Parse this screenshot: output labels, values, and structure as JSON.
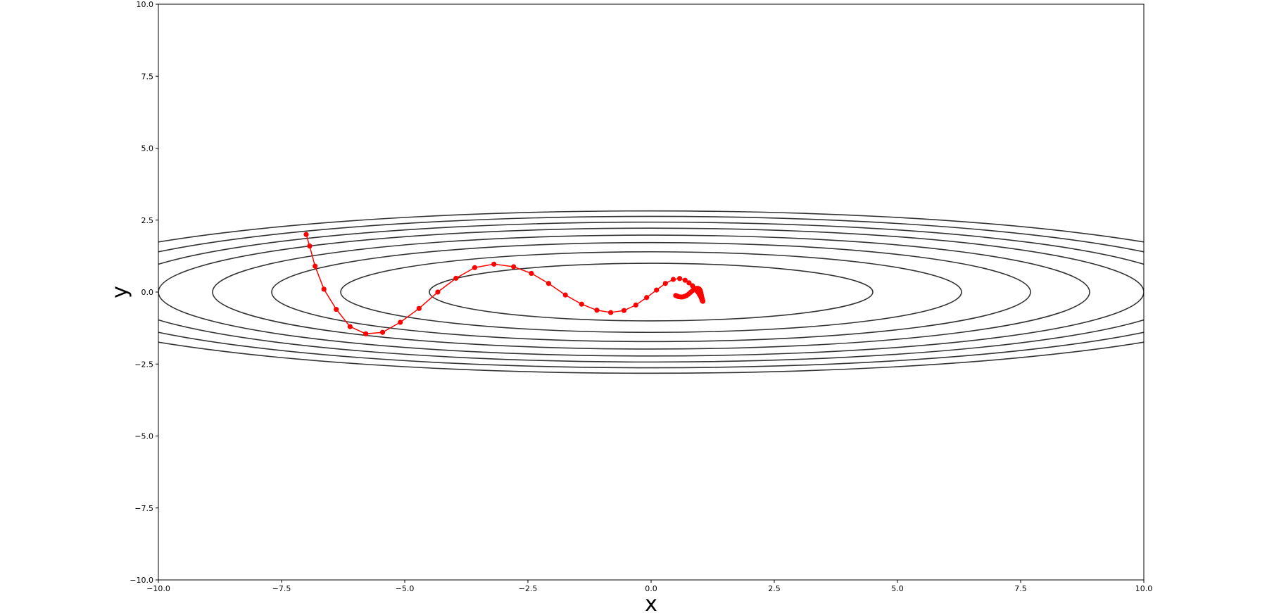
{
  "chart_data": {
    "type": "line",
    "title": "",
    "xlabel": "x",
    "ylabel": "y",
    "xlim": [
      -10,
      10
    ],
    "ylim": [
      -10,
      10
    ],
    "x_ticks": [
      -10,
      -7.5,
      -5,
      -2.5,
      0,
      2.5,
      5,
      7.5,
      10
    ],
    "y_ticks": [
      -10,
      -7.5,
      -5,
      -2.5,
      0,
      2.5,
      5,
      7.5,
      10
    ],
    "x_tick_labels": [
      "−10.0",
      "−7.5",
      "−5.0",
      "−2.5",
      "0.0",
      "2.5",
      "5.0",
      "7.5",
      "10.0"
    ],
    "y_tick_labels": [
      "−10.0",
      "−7.5",
      "−5.0",
      "−2.5",
      "0.0",
      "2.5",
      "5.0",
      "7.5",
      "10.0"
    ],
    "grid": false,
    "contours": {
      "color": "#333333",
      "ellipses": [
        {
          "a": 4.5,
          "b": 1.0
        },
        {
          "a": 6.3,
          "b": 1.4
        },
        {
          "a": 7.7,
          "b": 1.72
        },
        {
          "a": 8.9,
          "b": 1.98
        },
        {
          "a": 10.0,
          "b": 2.22
        },
        {
          "a": 10.9,
          "b": 2.43
        },
        {
          "a": 11.8,
          "b": 2.63
        },
        {
          "a": 12.7,
          "b": 2.82
        }
      ]
    },
    "series": [
      {
        "color": "#ff0000",
        "x": [
          -7.0,
          -6.93,
          -6.82,
          -6.64,
          -6.39,
          -6.11,
          -5.79,
          -5.45,
          -5.09,
          -4.71,
          -4.33,
          -3.96,
          -3.58,
          -3.19,
          -2.79,
          -2.43,
          -2.08,
          -1.74,
          -1.41,
          -1.1,
          -0.82,
          -0.55,
          -0.31,
          -0.09,
          0.11,
          0.29,
          0.45,
          0.58,
          0.69,
          0.77,
          0.84,
          0.89,
          0.93,
          0.96,
          0.98,
          1.0,
          1.02,
          1.03,
          1.04,
          1.05,
          1.05,
          1.04,
          1.03,
          1.02,
          1.01,
          1.0,
          0.98,
          0.95,
          0.92,
          0.88,
          0.84,
          0.8,
          0.76,
          0.72,
          0.68,
          0.64,
          0.6,
          0.56,
          0.53,
          0.5
        ],
        "y": [
          2.0,
          1.6,
          0.9,
          0.1,
          -0.6,
          -1.2,
          -1.45,
          -1.4,
          -1.05,
          -0.57,
          0.0,
          0.48,
          0.85,
          0.97,
          0.88,
          0.65,
          0.3,
          -0.1,
          -0.42,
          -0.63,
          -0.71,
          -0.64,
          -0.45,
          -0.19,
          0.07,
          0.3,
          0.44,
          0.47,
          0.41,
          0.32,
          0.22,
          0.12,
          0.04,
          -0.02,
          -0.08,
          -0.14,
          -0.2,
          -0.26,
          -0.3,
          -0.32,
          -0.3,
          -0.25,
          -0.18,
          -0.1,
          -0.02,
          0.05,
          0.1,
          0.13,
          0.13,
          0.1,
          0.05,
          -0.01,
          -0.07,
          -0.12,
          -0.15,
          -0.17,
          -0.17,
          -0.16,
          -0.14,
          -0.12
        ]
      }
    ]
  }
}
